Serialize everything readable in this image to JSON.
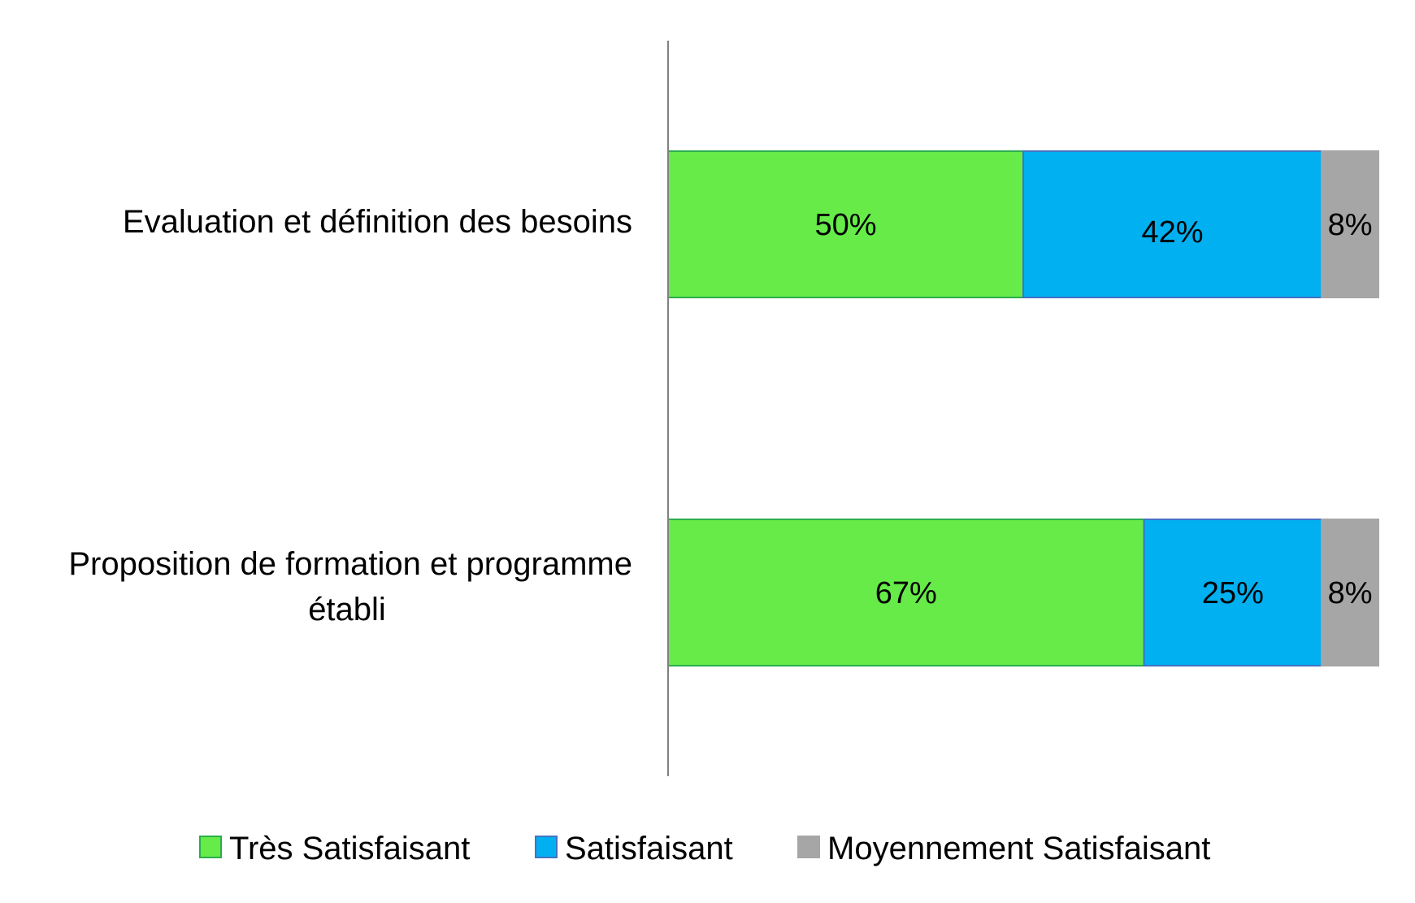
{
  "chart_data": {
    "type": "bar",
    "orientation": "horizontal",
    "stacked": "percent",
    "categories": [
      [
        "Evaluation et définition des besoins"
      ],
      [
        "Proposition de formation et programme",
        "établi"
      ]
    ],
    "series": [
      {
        "name": "Très Satisfaisant",
        "values": [
          50,
          67
        ],
        "labels": [
          "50%",
          "67%"
        ],
        "color": "#66EB49",
        "stroke": "#2BAE4E"
      },
      {
        "name": "Satisfaisant",
        "values": [
          42,
          25
        ],
        "labels": [
          "42%",
          "25%"
        ],
        "color": "#00B0F0",
        "stroke": "#4472C4"
      },
      {
        "name": "Moyennement Satisfaisant",
        "values": [
          8,
          8
        ],
        "labels": [
          "8%",
          "8%"
        ],
        "color": "#A6A6A6",
        "stroke": "#A6A6A6"
      }
    ],
    "xlim": [
      0,
      100
    ],
    "grid": false,
    "legend_position": "bottom"
  }
}
